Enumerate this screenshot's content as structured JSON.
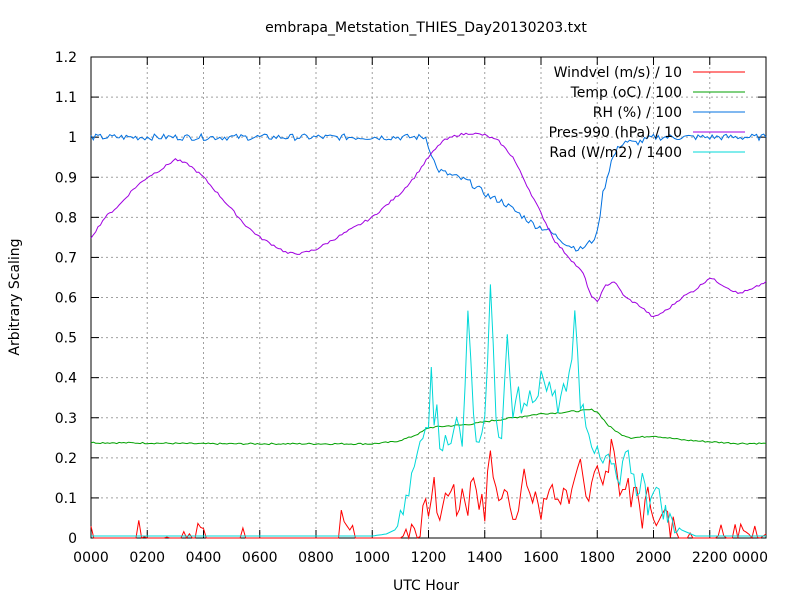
{
  "chart_data": {
    "type": "line",
    "title": "embrapa_Metstation_THIES_Day20130203.txt",
    "xlabel": "UTC Hour",
    "ylabel": "Arbitrary Scaling",
    "xlim": [
      0,
      24
    ],
    "ylim": [
      0,
      1.2
    ],
    "grid": true,
    "legend_position": "top-right",
    "x_tick_labels": [
      "0000",
      "0200",
      "0400",
      "0600",
      "0800",
      "1000",
      "1200",
      "1400",
      "1600",
      "1800",
      "2000",
      "2200",
      "0000"
    ],
    "y_tick_labels": [
      "0",
      "0.1",
      "0.2",
      "0.3",
      "0.4",
      "0.5",
      "0.6",
      "0.7",
      "0.8",
      "0.9",
      "1",
      "1.1",
      "1.2"
    ],
    "series": [
      {
        "name": "Windvel (m/s) / 10",
        "color": "#ff0000",
        "x": [
          0.0,
          0.1,
          0.2,
          1.6,
          1.7,
          1.8,
          1.9,
          2.0,
          2.6,
          2.7,
          2.8,
          3.2,
          3.3,
          3.4,
          3.6,
          3.7,
          3.8,
          4.0,
          4.1,
          4.2,
          5.3,
          5.4,
          5.5,
          8.8,
          8.9,
          9.0,
          9.1,
          9.2,
          9.3,
          9.4,
          11.0,
          11.2,
          11.4,
          11.6,
          11.8,
          12.0,
          12.2,
          12.4,
          12.6,
          12.8,
          13.0,
          13.2,
          13.4,
          13.6,
          13.8,
          14.0,
          14.2,
          14.4,
          14.6,
          14.8,
          15.0,
          15.2,
          15.4,
          15.6,
          15.8,
          16.0,
          16.2,
          16.4,
          16.6,
          16.8,
          17.0,
          17.2,
          17.4,
          17.6,
          17.8,
          18.0,
          18.2,
          18.4,
          18.6,
          18.8,
          19.0,
          19.2,
          19.4,
          19.6,
          19.8,
          20.0,
          20.2,
          20.4,
          20.6,
          20.8,
          21.0,
          21.2,
          21.4,
          21.6,
          21.8,
          22.0,
          22.2,
          22.4,
          22.6,
          22.8,
          23.0,
          23.2,
          23.4,
          23.6,
          23.8,
          24.0
        ],
        "y": [
          0.03,
          0.0,
          0.0,
          0.0,
          0.04,
          0.0,
          0.03,
          0.0,
          0.0,
          0.02,
          0.0,
          0.0,
          0.02,
          0.0,
          0.02,
          0.0,
          0.01,
          0.03,
          0.0,
          0.0,
          0.0,
          0.04,
          0.0,
          0.0,
          0.05,
          0.03,
          0.06,
          0.02,
          0.05,
          0.0,
          0.0,
          0.01,
          0.03,
          0.02,
          0.05,
          0.08,
          0.12,
          0.05,
          0.1,
          0.14,
          0.06,
          0.12,
          0.08,
          0.16,
          0.1,
          0.06,
          0.22,
          0.12,
          0.08,
          0.14,
          0.05,
          0.1,
          0.16,
          0.08,
          0.12,
          0.05,
          0.1,
          0.15,
          0.08,
          0.14,
          0.06,
          0.12,
          0.18,
          0.1,
          0.15,
          0.2,
          0.12,
          0.18,
          0.25,
          0.1,
          0.15,
          0.08,
          0.12,
          0.05,
          0.1,
          0.08,
          0.03,
          0.06,
          0.02,
          0.04,
          0.0,
          0.02,
          0.0,
          0.0,
          0.0,
          0.0,
          0.0,
          0.01,
          0.0,
          0.0,
          0.02,
          0.05,
          0.01,
          0.04,
          0.0,
          0.01
        ]
      },
      {
        "name": "Temp (oC) / 100",
        "color": "#00a000",
        "x": [
          0,
          2,
          4,
          6,
          8,
          10,
          10.8,
          11.3,
          11.7,
          12.0,
          12.4,
          12.8,
          13.2,
          13.6,
          14.0,
          14.5,
          15.0,
          15.5,
          16.0,
          16.5,
          17.0,
          17.5,
          17.8,
          18.0,
          18.4,
          18.8,
          19.2,
          19.6,
          20.0,
          20.5,
          21.0,
          22.0,
          23.0,
          24.0
        ],
        "y": [
          0.238,
          0.237,
          0.235,
          0.235,
          0.235,
          0.235,
          0.24,
          0.25,
          0.262,
          0.275,
          0.278,
          0.28,
          0.282,
          0.285,
          0.29,
          0.295,
          0.3,
          0.305,
          0.31,
          0.312,
          0.315,
          0.318,
          0.32,
          0.315,
          0.28,
          0.26,
          0.25,
          0.252,
          0.255,
          0.25,
          0.245,
          0.24,
          0.236,
          0.236
        ]
      },
      {
        "name": "RH (%) / 100",
        "color": "#0070e0",
        "x": [
          0,
          4,
          8,
          11.5,
          11.9,
          12.1,
          12.3,
          12.6,
          13.0,
          13.4,
          13.8,
          14.2,
          14.6,
          15.0,
          15.4,
          15.8,
          16.2,
          16.6,
          17.0,
          17.4,
          17.8,
          18.0,
          18.2,
          18.5,
          18.8,
          19.0,
          19.3,
          19.6,
          20.0,
          21.0,
          22.0,
          23.0,
          24.0
        ],
        "y": [
          1.0,
          1.0,
          1.0,
          1.0,
          1.0,
          0.96,
          0.92,
          0.91,
          0.9,
          0.89,
          0.87,
          0.85,
          0.84,
          0.82,
          0.8,
          0.78,
          0.77,
          0.75,
          0.73,
          0.72,
          0.74,
          0.76,
          0.86,
          0.94,
          0.98,
          0.99,
          0.985,
          0.99,
          1.0,
          1.0,
          1.0,
          1.0,
          1.0
        ]
      },
      {
        "name": "Pres-990 (hPa) / 10",
        "color": "#a000e0",
        "x": [
          0,
          0.5,
          1.0,
          1.5,
          2.0,
          2.5,
          3.0,
          3.5,
          4.0,
          4.5,
          5.0,
          5.5,
          6.0,
          6.5,
          7.0,
          7.5,
          8.0,
          8.5,
          9.0,
          9.5,
          10.0,
          10.5,
          11.0,
          11.5,
          12.0,
          12.5,
          13.0,
          13.5,
          14.0,
          14.5,
          15.0,
          15.5,
          16.0,
          16.5,
          17.0,
          17.5,
          17.8,
          18.0,
          18.3,
          18.6,
          19.0,
          19.5,
          20.0,
          20.5,
          21.0,
          21.5,
          22.0,
          22.5,
          23.0,
          23.5,
          24.0
        ],
        "y": [
          0.75,
          0.8,
          0.83,
          0.87,
          0.9,
          0.92,
          0.945,
          0.93,
          0.9,
          0.86,
          0.82,
          0.78,
          0.75,
          0.73,
          0.71,
          0.71,
          0.72,
          0.74,
          0.76,
          0.78,
          0.8,
          0.83,
          0.86,
          0.9,
          0.95,
          0.99,
          1.005,
          1.01,
          1.005,
          0.99,
          0.95,
          0.88,
          0.81,
          0.74,
          0.7,
          0.66,
          0.6,
          0.59,
          0.63,
          0.64,
          0.6,
          0.58,
          0.55,
          0.57,
          0.6,
          0.62,
          0.65,
          0.63,
          0.61,
          0.62,
          0.64
        ]
      },
      {
        "name": "Rad (W/m2) / 1400",
        "color": "#00d8d8",
        "x": [
          0,
          4,
          8,
          10.0,
          10.5,
          10.8,
          11.0,
          11.2,
          11.4,
          11.6,
          11.8,
          12.0,
          12.1,
          12.2,
          12.3,
          12.4,
          12.6,
          12.8,
          13.0,
          13.2,
          13.4,
          13.6,
          13.8,
          14.0,
          14.2,
          14.4,
          14.6,
          14.8,
          15.0,
          15.2,
          15.4,
          15.6,
          15.8,
          16.0,
          16.2,
          16.4,
          16.6,
          16.8,
          17.0,
          17.2,
          17.4,
          17.6,
          17.8,
          18.0,
          18.2,
          18.4,
          18.6,
          18.8,
          19.0,
          19.2,
          19.4,
          19.6,
          19.8,
          20.0,
          20.2,
          20.5,
          21.0,
          21.5,
          22.0,
          23.0,
          24.0
        ],
        "y": [
          0.005,
          0.005,
          0.005,
          0.005,
          0.01,
          0.02,
          0.04,
          0.08,
          0.15,
          0.2,
          0.25,
          0.3,
          0.45,
          0.3,
          0.36,
          0.2,
          0.28,
          0.22,
          0.3,
          0.25,
          0.55,
          0.3,
          0.24,
          0.3,
          0.62,
          0.3,
          0.25,
          0.48,
          0.3,
          0.36,
          0.32,
          0.35,
          0.32,
          0.42,
          0.35,
          0.38,
          0.32,
          0.37,
          0.4,
          0.55,
          0.35,
          0.3,
          0.25,
          0.2,
          0.18,
          0.2,
          0.16,
          0.13,
          0.2,
          0.18,
          0.12,
          0.15,
          0.08,
          0.14,
          0.1,
          0.05,
          0.02,
          0.005,
          0.005,
          0.005,
          0.005
        ]
      }
    ]
  }
}
